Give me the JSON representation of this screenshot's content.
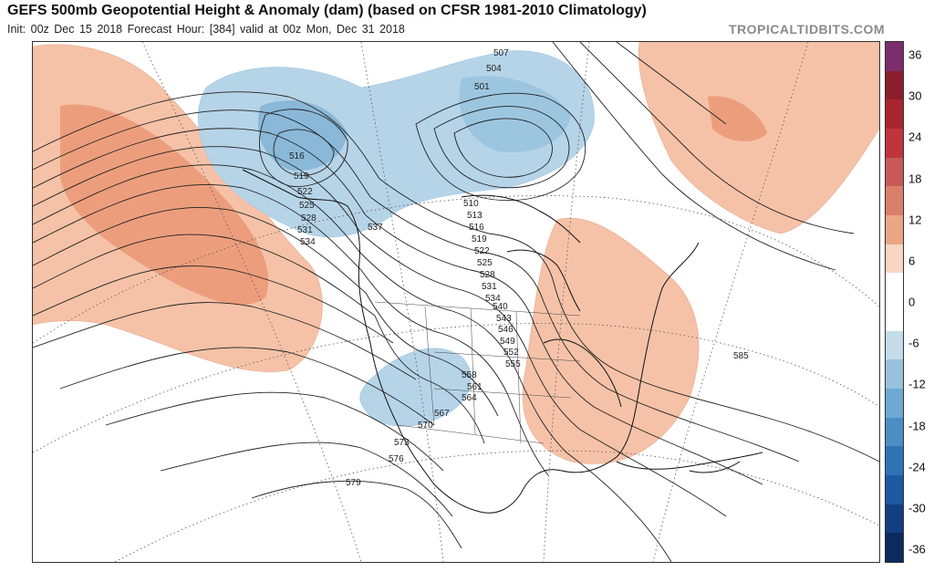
{
  "header": {
    "title": "GEFS 500mb Geopotential Height & Anomaly (dam) (based on CFSR 1981-2010 Climatology)",
    "subtitle": "Init: 00z Dec 15 2018   Forecast Hour: [384]   valid at 00z Mon, Dec 31 2018",
    "brand": "TROPICALTIDBITS.COM"
  },
  "colorbar": {
    "labels": [
      "36",
      "30",
      "24",
      "18",
      "12",
      "6",
      "0",
      "-6",
      "-12",
      "-18",
      "-24",
      "-30",
      "-36"
    ],
    "colors": [
      "#7b2d6e",
      "#8c1d2c",
      "#a8252f",
      "#c0343c",
      "#c75a58",
      "#d98069",
      "#eba686",
      "#f8d6c4",
      "#ffffff",
      "#ffffff",
      "#c4dbe9",
      "#98c2dd",
      "#6ea9d2",
      "#4b8ec4",
      "#2f73b5",
      "#1d5aa1",
      "#133f80",
      "#0c2a5c"
    ]
  },
  "contour_labels": [
    "507",
    "504",
    "501",
    "516",
    "519",
    "522",
    "525",
    "528",
    "531",
    "534",
    "537",
    "510",
    "513",
    "516",
    "519",
    "522",
    "525",
    "528",
    "531",
    "534",
    "540",
    "543",
    "546",
    "549",
    "552",
    "555",
    "558",
    "561",
    "564",
    "567",
    "570",
    "573",
    "576",
    "579",
    "585"
  ],
  "colors": {
    "warm_anomaly": "#f5c2a8",
    "warm_anomaly_strong": "#ec9e7c",
    "cold_anomaly": "#b6d4e8",
    "cold_anomaly_strong": "#8ab8d8",
    "contour": "#222222",
    "coast": "#111111"
  }
}
